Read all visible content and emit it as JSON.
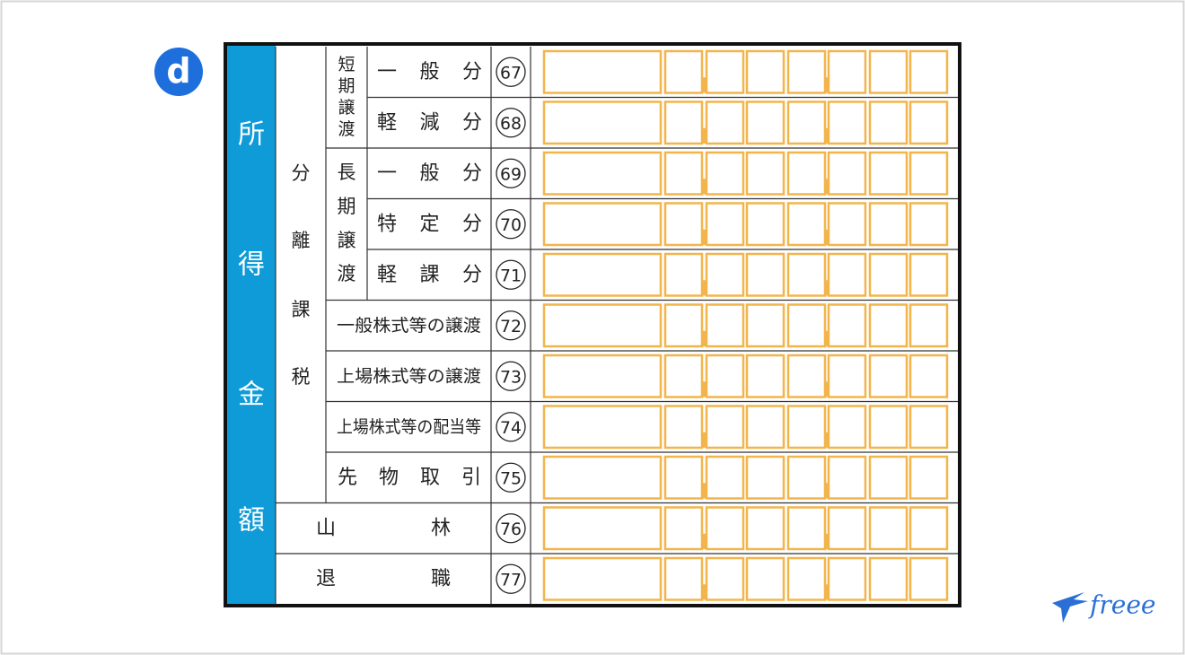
{
  "badge": "d",
  "side_label": [
    "所",
    "得",
    "金",
    "額"
  ],
  "group_label": [
    "分",
    "離",
    "課",
    "税"
  ],
  "subgroups": [
    {
      "chars": [
        "短",
        "期",
        "譲",
        "渡"
      ]
    },
    {
      "chars": [
        "長",
        "期",
        "譲",
        "渡"
      ]
    }
  ],
  "rows": [
    {
      "label": "一般分",
      "number": 67
    },
    {
      "label": "軽減分",
      "number": 68
    },
    {
      "label": "一般分",
      "number": 69
    },
    {
      "label": "特定分",
      "number": 70
    },
    {
      "label": "軽課分",
      "number": 71
    },
    {
      "label": "一般株式等の譲渡",
      "number": 72
    },
    {
      "label": "上場株式等の譲渡",
      "number": 73
    },
    {
      "label": "上場株式等の配当等",
      "number": 74
    },
    {
      "label": "先物取引",
      "number": 75
    },
    {
      "label": "山林",
      "number": 76
    },
    {
      "label": "退職",
      "number": 77
    }
  ],
  "logo": "freee"
}
